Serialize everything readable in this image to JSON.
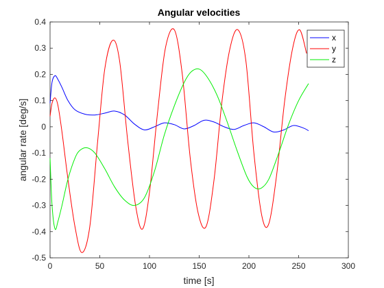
{
  "chart_data": {
    "type": "line",
    "title": "Angular velocities",
    "xlabel": "time [s]",
    "ylabel": "angular rate [deg/s]",
    "xlim": [
      0,
      300
    ],
    "ylim": [
      -0.5,
      0.4
    ],
    "xticks": [
      0,
      50,
      100,
      150,
      200,
      250,
      300
    ],
    "yticks": [
      -0.5,
      -0.4,
      -0.3,
      -0.2,
      -0.1,
      0,
      0.1,
      0.2,
      0.3,
      0.4
    ],
    "xtick_labels": [
      "0",
      "50",
      "100",
      "150",
      "200",
      "250",
      "300"
    ],
    "ytick_labels": [
      "-0.5",
      "-0.4",
      "-0.3",
      "-0.2",
      "-0.1",
      "0",
      "0.1",
      "0.2",
      "0.3",
      "0.4"
    ],
    "grid": false,
    "legend_position": "top-right",
    "series": [
      {
        "name": "x",
        "color": "#0000ff",
        "x": [
          0,
          2,
          5,
          8,
          12,
          18,
          25,
          35,
          45,
          55,
          65,
          75,
          85,
          95,
          105,
          115,
          125,
          135,
          145,
          155,
          165,
          175,
          185,
          195,
          205,
          215,
          225,
          235,
          245,
          255,
          260
        ],
        "y": [
          0.09,
          0.17,
          0.195,
          0.18,
          0.15,
          0.1,
          0.065,
          0.048,
          0.045,
          0.052,
          0.06,
          0.045,
          0.01,
          -0.012,
          0.0,
          0.015,
          0.008,
          -0.008,
          0.005,
          0.025,
          0.018,
          0.0,
          -0.01,
          0.005,
          0.015,
          0.0,
          -0.02,
          -0.012,
          0.005,
          -0.005,
          -0.015
        ]
      },
      {
        "name": "y",
        "color": "#ff0000",
        "x": [
          0,
          2,
          5,
          8,
          12,
          18,
          25,
          32,
          40,
          48,
          55,
          63,
          70,
          78,
          86,
          93,
          100,
          108,
          116,
          125,
          133,
          141,
          149,
          157,
          165,
          173,
          181,
          189,
          197,
          205,
          213,
          220,
          228,
          236,
          244,
          251,
          258
        ],
        "y": [
          0.04,
          0.09,
          0.11,
          0.08,
          -0.02,
          -0.2,
          -0.38,
          -0.48,
          -0.38,
          -0.05,
          0.22,
          0.33,
          0.25,
          -0.05,
          -0.3,
          -0.39,
          -0.25,
          0.05,
          0.3,
          0.37,
          0.2,
          -0.12,
          -0.33,
          -0.38,
          -0.2,
          0.1,
          0.3,
          0.37,
          0.25,
          -0.1,
          -0.34,
          -0.37,
          -0.18,
          0.1,
          0.3,
          0.37,
          0.28
        ]
      },
      {
        "name": "z",
        "color": "#00ee00",
        "x": [
          0,
          2,
          5,
          8,
          12,
          18,
          25,
          30,
          37,
          45,
          55,
          65,
          75,
          85,
          95,
          105,
          115,
          125,
          135,
          142,
          150,
          158,
          168,
          178,
          188,
          198,
          205,
          212,
          220,
          230,
          240,
          250,
          260
        ],
        "y": [
          -0.12,
          -0.3,
          -0.39,
          -0.36,
          -0.3,
          -0.2,
          -0.12,
          -0.09,
          -0.08,
          -0.1,
          -0.16,
          -0.23,
          -0.28,
          -0.3,
          -0.27,
          -0.17,
          -0.03,
          0.08,
          0.17,
          0.21,
          0.22,
          0.19,
          0.12,
          0.02,
          -0.09,
          -0.19,
          -0.23,
          -0.235,
          -0.2,
          -0.1,
          0.01,
          0.1,
          0.165
        ]
      }
    ]
  }
}
